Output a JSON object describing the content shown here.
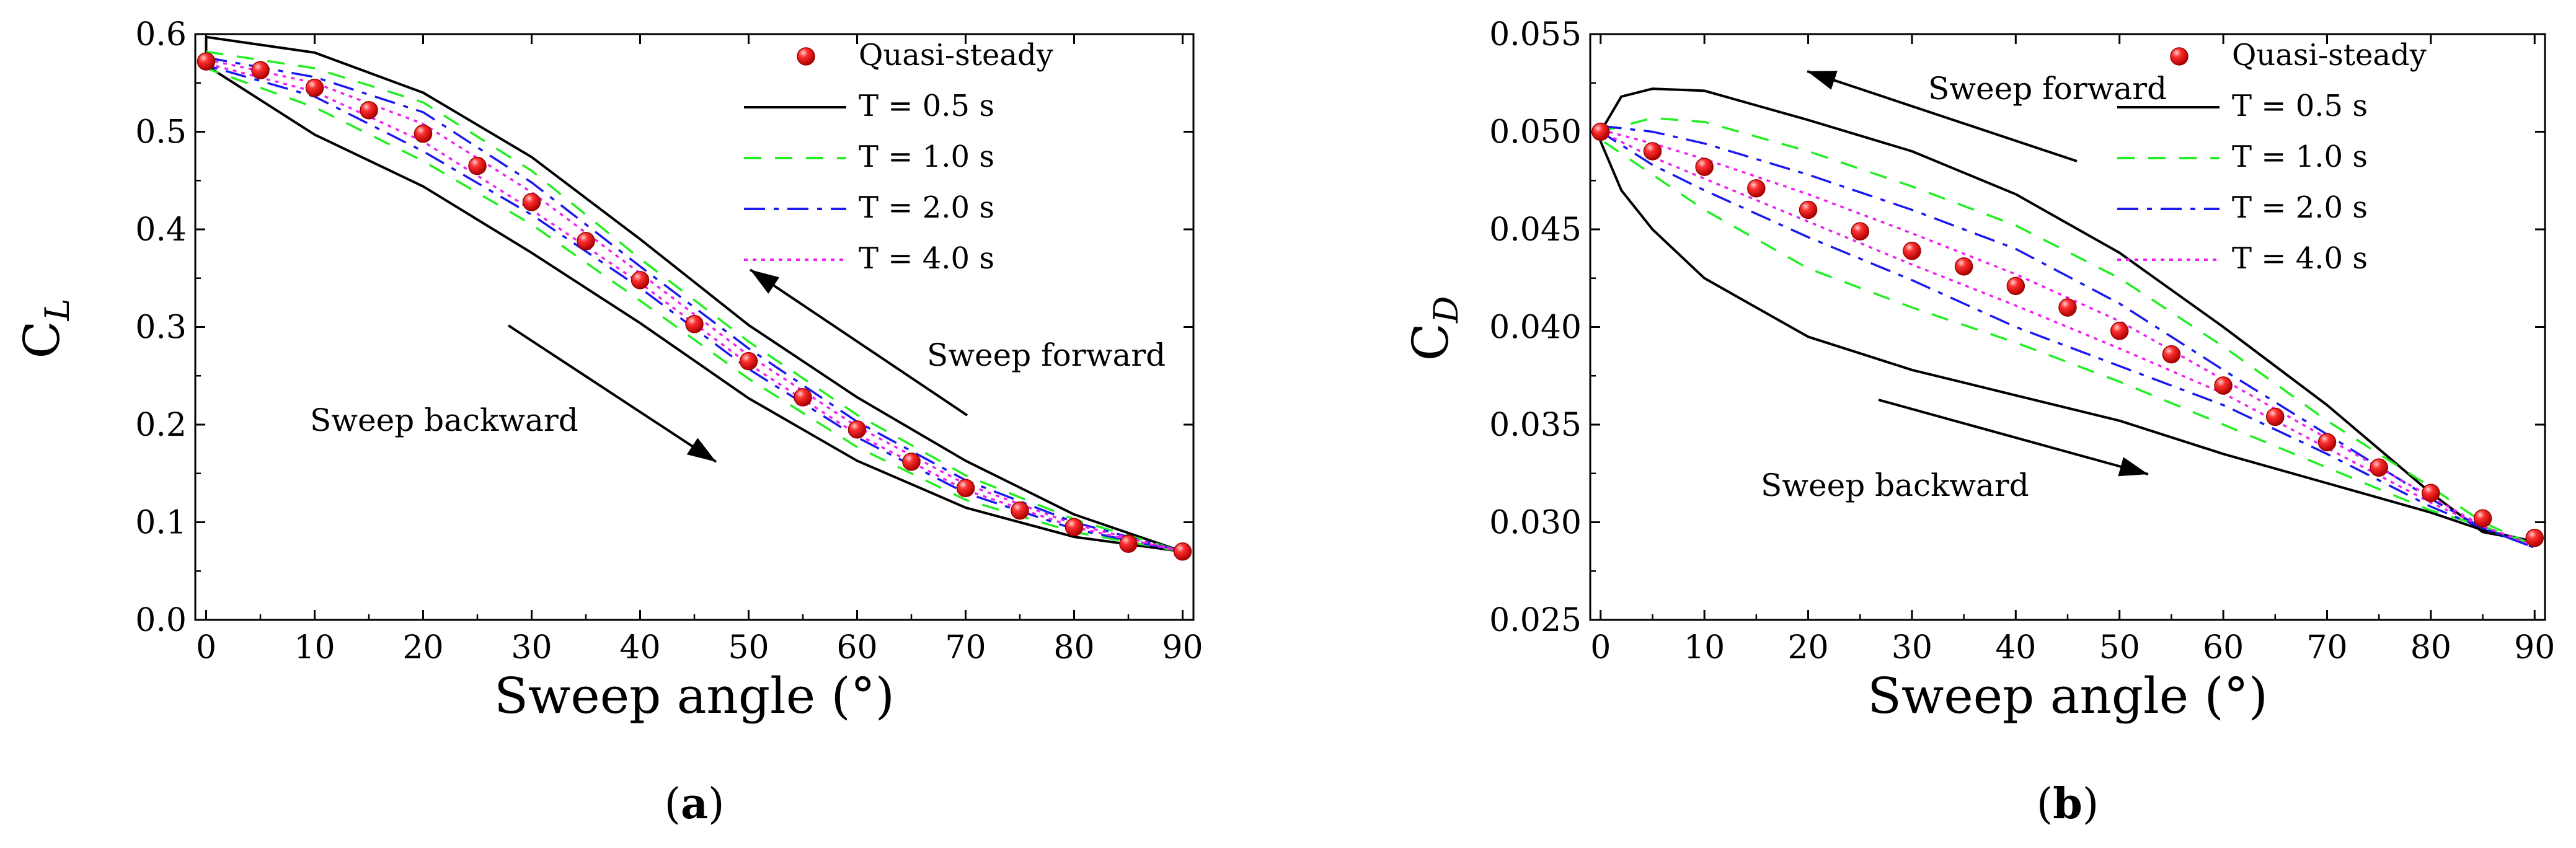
{
  "chart_data": [
    {
      "type": "line",
      "panel_label": "(a)",
      "caption_letter": "a",
      "xlabel": "Sweep angle (°)",
      "ylabel_main": "C",
      "ylabel_sub": "L",
      "xlim": [
        -1,
        91
      ],
      "ylim": [
        0.0,
        0.6
      ],
      "xticks": [
        0,
        10,
        20,
        30,
        40,
        50,
        60,
        70,
        80,
        90
      ],
      "xtick_labels": [
        "0",
        "10",
        "20",
        "30",
        "40",
        "50",
        "60",
        "70",
        "80",
        "90"
      ],
      "yticks": [
        0.0,
        0.1,
        0.2,
        0.3,
        0.4,
        0.5,
        0.6
      ],
      "ytick_labels": [
        "0.0",
        "0.1",
        "0.2",
        "0.3",
        "0.4",
        "0.5",
        "0.6"
      ],
      "legend": [
        "Quasi-steady",
        "T = 0.5 s",
        "T = 1.0 s",
        "T = 2.0 s",
        "T = 4.0 s"
      ],
      "annotations": {
        "forward": "Sweep forward",
        "backward": "Sweep backward"
      },
      "quasi_steady": {
        "x": [
          0,
          5,
          10,
          15,
          20,
          25,
          30,
          35,
          40,
          45,
          50,
          55,
          60,
          65,
          70,
          75,
          80,
          85,
          90
        ],
        "y": [
          0.572,
          0.563,
          0.545,
          0.522,
          0.498,
          0.465,
          0.428,
          0.388,
          0.348,
          0.303,
          0.265,
          0.228,
          0.195,
          0.162,
          0.135,
          0.112,
          0.095,
          0.078,
          0.07
        ]
      },
      "series": [
        {
          "name": "T = 0.5 s",
          "color": "#000000",
          "x": [
            0,
            10,
            20,
            30,
            40,
            50,
            60,
            70,
            80,
            90
          ],
          "y_forward": [
            0.597,
            0.581,
            0.54,
            0.474,
            0.39,
            0.302,
            0.228,
            0.163,
            0.108,
            0.07
          ],
          "y_backward": [
            0.568,
            0.497,
            0.444,
            0.376,
            0.304,
            0.227,
            0.163,
            0.115,
            0.085,
            0.07
          ]
        },
        {
          "name": "T = 1.0 s",
          "color": "#22ee22",
          "x": [
            0,
            10,
            20,
            30,
            40,
            50,
            60,
            70,
            80,
            90
          ],
          "y_forward": [
            0.582,
            0.565,
            0.53,
            0.46,
            0.37,
            0.285,
            0.21,
            0.148,
            0.103,
            0.07
          ],
          "y_backward": [
            0.565,
            0.525,
            0.47,
            0.405,
            0.327,
            0.247,
            0.177,
            0.123,
            0.09,
            0.07
          ]
        },
        {
          "name": "T = 2.0 s",
          "color": "#1a1aee",
          "x": [
            0,
            10,
            20,
            30,
            40,
            50,
            60,
            70,
            80,
            90
          ],
          "y_forward": [
            0.576,
            0.556,
            0.52,
            0.448,
            0.362,
            0.278,
            0.203,
            0.143,
            0.1,
            0.07
          ],
          "y_backward": [
            0.568,
            0.536,
            0.48,
            0.415,
            0.34,
            0.257,
            0.187,
            0.13,
            0.093,
            0.07
          ]
        },
        {
          "name": "T = 4.0 s",
          "color": "#ee22ee",
          "x": [
            0,
            10,
            20,
            30,
            40,
            50,
            60,
            70,
            80,
            90
          ],
          "y_forward": [
            0.574,
            0.55,
            0.508,
            0.438,
            0.355,
            0.271,
            0.198,
            0.139,
            0.098,
            0.07
          ],
          "y_backward": [
            0.57,
            0.541,
            0.49,
            0.42,
            0.345,
            0.262,
            0.19,
            0.133,
            0.095,
            0.07
          ]
        }
      ]
    },
    {
      "type": "line",
      "panel_label": "(b)",
      "caption_letter": "b",
      "xlabel": "Sweep angle (°)",
      "ylabel_main": "C",
      "ylabel_sub": "D",
      "xlim": [
        -1,
        91
      ],
      "ylim": [
        0.025,
        0.055
      ],
      "xticks": [
        0,
        10,
        20,
        30,
        40,
        50,
        60,
        70,
        80,
        90
      ],
      "xtick_labels": [
        "0",
        "10",
        "20",
        "30",
        "40",
        "50",
        "60",
        "70",
        "80",
        "90"
      ],
      "yticks": [
        0.025,
        0.03,
        0.035,
        0.04,
        0.045,
        0.05,
        0.055
      ],
      "ytick_labels": [
        "0.025",
        "0.030",
        "0.035",
        "0.040",
        "0.045",
        "0.050",
        "0.055"
      ],
      "legend": [
        "Quasi-steady",
        "T = 0.5 s",
        "T = 1.0 s",
        "T = 2.0 s",
        "T = 4.0 s"
      ],
      "annotations": {
        "forward": "Sweep forward",
        "backward": "Sweep backward"
      },
      "quasi_steady": {
        "x": [
          0,
          5,
          10,
          15,
          20,
          25,
          30,
          35,
          40,
          45,
          50,
          55,
          60,
          65,
          70,
          75,
          80,
          85,
          90
        ],
        "y": [
          0.05,
          0.049,
          0.0482,
          0.0471,
          0.046,
          0.0449,
          0.0439,
          0.0431,
          0.0421,
          0.041,
          0.0398,
          0.0386,
          0.037,
          0.0354,
          0.0341,
          0.0328,
          0.0315,
          0.0302,
          0.0292
        ]
      },
      "series": [
        {
          "name": "T = 0.5 s",
          "color": "#000000",
          "x": [
            0,
            2,
            5,
            10,
            20,
            30,
            40,
            50,
            60,
            70,
            80,
            85,
            90
          ],
          "y_forward": [
            0.05,
            0.0518,
            0.0522,
            0.0521,
            0.0506,
            0.049,
            0.0468,
            0.0438,
            0.04,
            0.036,
            0.0315,
            0.0295,
            0.029
          ],
          "y_backward": [
            0.0495,
            0.047,
            0.045,
            0.0425,
            0.0395,
            0.0378,
            0.0365,
            0.0352,
            0.0335,
            0.032,
            0.0305,
            0.0296,
            0.029
          ]
        },
        {
          "name": "T = 1.0 s",
          "color": "#22ee22",
          "x": [
            0,
            5,
            10,
            20,
            30,
            40,
            50,
            60,
            70,
            80,
            85,
            90
          ],
          "y_forward": [
            0.05,
            0.0507,
            0.0505,
            0.049,
            0.0472,
            0.0452,
            0.0425,
            0.039,
            0.0352,
            0.0318,
            0.03,
            0.0288
          ],
          "y_backward": [
            0.0496,
            0.0478,
            0.046,
            0.043,
            0.041,
            0.0392,
            0.0372,
            0.035,
            0.0328,
            0.0306,
            0.0298,
            0.0288
          ]
        },
        {
          "name": "T = 2.0 s",
          "color": "#1a1aee",
          "x": [
            0,
            5,
            10,
            20,
            30,
            40,
            50,
            60,
            70,
            80,
            85,
            90
          ],
          "y_forward": [
            0.0503,
            0.05,
            0.0494,
            0.0478,
            0.046,
            0.044,
            0.0412,
            0.0378,
            0.0345,
            0.0312,
            0.0297,
            0.0287
          ],
          "y_backward": [
            0.05,
            0.0483,
            0.047,
            0.0446,
            0.0424,
            0.04,
            0.038,
            0.036,
            0.0335,
            0.0308,
            0.0297,
            0.0287
          ]
        },
        {
          "name": "T = 4.0 s",
          "color": "#ee22ee",
          "x": [
            0,
            5,
            10,
            20,
            30,
            40,
            50,
            60,
            70,
            80,
            85,
            90
          ],
          "y_forward": [
            0.0501,
            0.0494,
            0.0486,
            0.0468,
            0.0448,
            0.0427,
            0.0403,
            0.0373,
            0.0343,
            0.0313,
            0.0298,
            0.0288
          ],
          "y_backward": [
            0.05,
            0.0487,
            0.0476,
            0.0454,
            0.0432,
            0.0411,
            0.0389,
            0.0366,
            0.0338,
            0.031,
            0.0298,
            0.0288
          ]
        }
      ]
    }
  ]
}
